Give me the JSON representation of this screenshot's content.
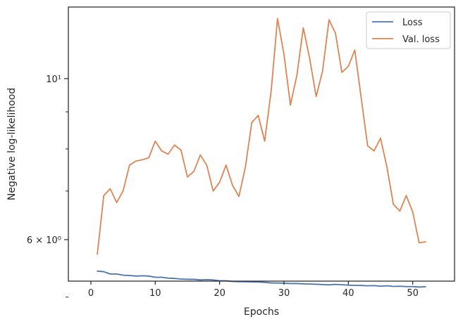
{
  "chart_data": {
    "type": "line",
    "xlabel": "Epochs",
    "ylabel": "Negative log-likelihood",
    "yscale": "log",
    "xlim": [
      -3.5,
      56.5
    ],
    "ylim": [
      5.26,
      12.55
    ],
    "x_ticks": [
      0,
      10,
      20,
      30,
      40,
      50
    ],
    "y_major_ticks": [
      {
        "value": 6,
        "label": "6 × 10⁰"
      },
      {
        "value": 10,
        "label": "10¹"
      }
    ],
    "y_minor_ticks": [
      5,
      7,
      8,
      9
    ],
    "legend": {
      "placement": "top-right"
    },
    "grid": false,
    "x": [
      1,
      2,
      3,
      4,
      5,
      6,
      7,
      8,
      9,
      10,
      11,
      12,
      13,
      14,
      15,
      16,
      17,
      18,
      19,
      20,
      21,
      22,
      23,
      24,
      25,
      26,
      27,
      28,
      29,
      30,
      31,
      32,
      33,
      34,
      35,
      36,
      37,
      38,
      39,
      40,
      41,
      42,
      43,
      44,
      45,
      46,
      47,
      48,
      49,
      50,
      51,
      52
    ],
    "series": [
      {
        "name": "Loss",
        "color": "#4c72b0",
        "values": [
          5.43,
          5.42,
          5.38,
          5.38,
          5.36,
          5.355,
          5.345,
          5.35,
          5.345,
          5.325,
          5.325,
          5.31,
          5.305,
          5.295,
          5.29,
          5.29,
          5.28,
          5.285,
          5.28,
          5.265,
          5.265,
          5.255,
          5.25,
          5.25,
          5.245,
          5.245,
          5.24,
          5.23,
          5.228,
          5.225,
          5.22,
          5.22,
          5.215,
          5.212,
          5.208,
          5.203,
          5.198,
          5.206,
          5.2,
          5.193,
          5.19,
          5.188,
          5.183,
          5.186,
          5.176,
          5.183,
          5.173,
          5.176,
          5.17,
          5.17,
          5.162,
          5.168
        ]
      },
      {
        "name": "Val. loss",
        "color": "#dd8452",
        "values": [
          5.73,
          6.9,
          7.05,
          6.75,
          7.0,
          7.6,
          7.7,
          7.73,
          7.78,
          8.2,
          7.95,
          7.87,
          8.1,
          7.97,
          7.32,
          7.45,
          7.85,
          7.6,
          7.0,
          7.2,
          7.6,
          7.13,
          6.88,
          7.55,
          8.7,
          8.9,
          8.2,
          9.6,
          12.1,
          10.8,
          9.2,
          10.1,
          11.75,
          10.65,
          9.45,
          10.25,
          12.05,
          11.55,
          10.2,
          10.4,
          10.95,
          9.4,
          8.08,
          7.95,
          8.28,
          7.55,
          6.71,
          6.57,
          6.9,
          6.55,
          5.94,
          5.96
        ]
      }
    ]
  }
}
